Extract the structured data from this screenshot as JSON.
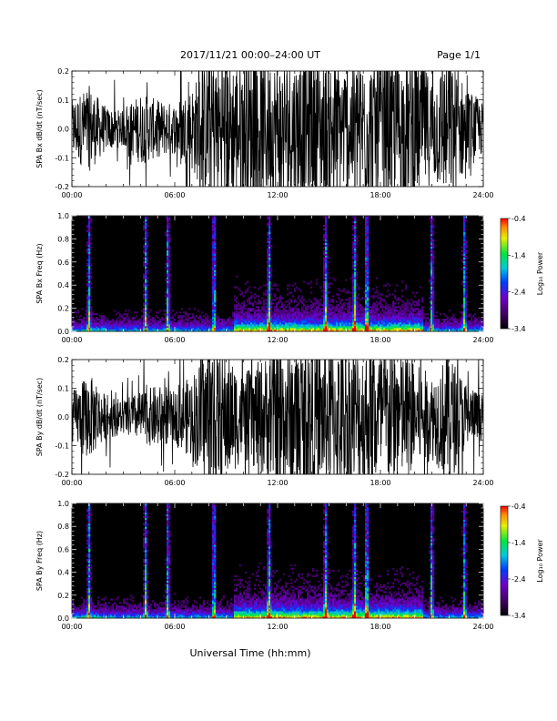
{
  "header": {
    "title": "2017/11/21  00:00–24:00 UT",
    "page": "Page 1/1"
  },
  "xaxis": {
    "label": "Universal Time (hh:mm)",
    "ticks": [
      "00:00",
      "06:00",
      "12:00",
      "18:00",
      "24:00"
    ],
    "range_hours": [
      0,
      24
    ]
  },
  "colorbar": {
    "label": "Log₁₀ Power",
    "ticks": [
      "-0.4",
      "-1.4",
      "-2.4",
      "-3.4"
    ],
    "range": [
      -3.4,
      -0.4
    ]
  },
  "chart_data": [
    {
      "type": "line",
      "ylabel": "SPA Bx dB/dt (nT/sec)",
      "ylim": [
        -0.2,
        0.2
      ],
      "yticks": [
        "0.2",
        "0.1",
        "0.0",
        "-0.1",
        "-0.2"
      ],
      "envelope": {
        "x_hours": [
          0,
          1,
          2,
          3,
          4,
          5,
          6,
          7,
          8,
          9,
          10,
          11,
          12,
          13,
          14,
          15,
          16,
          17,
          18,
          19,
          20,
          21,
          22,
          23,
          24
        ],
        "amplitude": [
          0.08,
          0.12,
          0.06,
          0.05,
          0.1,
          0.08,
          0.07,
          0.12,
          0.2,
          0.2,
          0.2,
          0.2,
          0.2,
          0.2,
          0.2,
          0.2,
          0.18,
          0.2,
          0.2,
          0.2,
          0.2,
          0.15,
          0.2,
          0.12,
          0.07
        ]
      }
    },
    {
      "type": "heatmap",
      "ylabel": "SPA Bx Freq (Hz)",
      "ylim": [
        0.0,
        1.0
      ],
      "yticks": [
        "1.0",
        "0.8",
        "0.6",
        "0.4",
        "0.2",
        "0.0"
      ],
      "zlim": [
        -3.4,
        -0.4
      ],
      "bursts_hours": [
        1.0,
        4.3,
        5.6,
        8.3,
        11.5,
        14.8,
        16.5,
        17.2,
        21.0,
        22.9
      ]
    },
    {
      "type": "line",
      "ylabel": "SPA By dB/dt (nT/sec)",
      "ylim": [
        -0.2,
        0.2
      ],
      "yticks": [
        "0.2",
        "0.1",
        "0.0",
        "-0.1",
        "-0.2"
      ],
      "envelope": {
        "x_hours": [
          0,
          1,
          2,
          3,
          4,
          5,
          6,
          7,
          8,
          9,
          10,
          11,
          12,
          13,
          14,
          15,
          16,
          17,
          18,
          19,
          20,
          21,
          22,
          23,
          24
        ],
        "amplitude": [
          0.07,
          0.12,
          0.06,
          0.05,
          0.07,
          0.09,
          0.07,
          0.12,
          0.2,
          0.18,
          0.12,
          0.16,
          0.2,
          0.2,
          0.2,
          0.2,
          0.2,
          0.2,
          0.2,
          0.2,
          0.15,
          0.12,
          0.18,
          0.1,
          0.06
        ]
      }
    },
    {
      "type": "heatmap",
      "ylabel": "SPA By Freq (Hz)",
      "ylim": [
        0.0,
        1.0
      ],
      "yticks": [
        "1.0",
        "0.8",
        "0.6",
        "0.4",
        "0.2",
        "0.0"
      ],
      "zlim": [
        -3.4,
        -0.4
      ],
      "bursts_hours": [
        1.0,
        4.3,
        5.6,
        8.3,
        11.5,
        14.8,
        16.5,
        17.2,
        21.0,
        22.9
      ]
    }
  ]
}
